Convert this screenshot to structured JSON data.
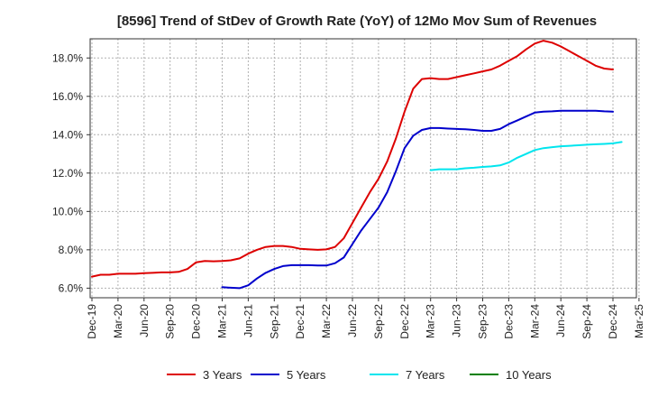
{
  "chart_data": {
    "type": "line",
    "title": "[8596]  Trend of StDev of Growth Rate (YoY) of 12Mo Mov Sum of Revenues",
    "xlabel": "",
    "ylabel": "",
    "ylim": [
      5.5,
      19.0
    ],
    "yticks": [
      6.0,
      8.0,
      10.0,
      12.0,
      14.0,
      16.0,
      18.0
    ],
    "ytick_labels": [
      "6.0%",
      "8.0%",
      "10.0%",
      "12.0%",
      "14.0%",
      "16.0%",
      "18.0%"
    ],
    "xtick_labels": [
      "Dec-19",
      "Mar-20",
      "Jun-20",
      "Sep-20",
      "Dec-20",
      "Mar-21",
      "Jun-21",
      "Sep-21",
      "Dec-21",
      "Mar-22",
      "Jun-22",
      "Sep-22",
      "Dec-22",
      "Mar-23",
      "Jun-23",
      "Sep-23",
      "Dec-23",
      "Mar-24",
      "Jun-24",
      "Sep-24",
      "Dec-24",
      "Mar-25"
    ],
    "x_start": "Dec-19",
    "num_months": 63,
    "grid": true,
    "legend_position": "bottom",
    "series": [
      {
        "name": "3 Years",
        "color": "#dd0000",
        "start_index": 0,
        "values": [
          6.6,
          6.7,
          6.7,
          6.75,
          6.75,
          6.75,
          6.78,
          6.8,
          6.82,
          6.82,
          6.85,
          7.0,
          7.35,
          7.42,
          7.4,
          7.42,
          7.45,
          7.55,
          7.8,
          8.0,
          8.15,
          8.2,
          8.2,
          8.15,
          8.05,
          8.02,
          8.0,
          8.02,
          8.15,
          8.6,
          9.4,
          10.2,
          11.0,
          11.7,
          12.6,
          13.8,
          15.2,
          16.4,
          16.9,
          16.95,
          16.9,
          16.9,
          17.0,
          17.1,
          17.2,
          17.3,
          17.4,
          17.6,
          17.85,
          18.1,
          18.45,
          18.75,
          18.9,
          18.8,
          18.6,
          18.35,
          18.1,
          17.85,
          17.6,
          17.45,
          17.4
        ]
      },
      {
        "name": "5 Years",
        "color": "#0000cc",
        "start_index": 15,
        "values": [
          6.05,
          6.02,
          6.0,
          6.15,
          6.5,
          6.8,
          7.0,
          7.15,
          7.2,
          7.2,
          7.2,
          7.18,
          7.18,
          7.3,
          7.6,
          8.3,
          9.0,
          9.6,
          10.2,
          11.0,
          12.1,
          13.3,
          13.95,
          14.25,
          14.35,
          14.35,
          14.32,
          14.3,
          14.28,
          14.25,
          14.2,
          14.2,
          14.3,
          14.55,
          14.75,
          14.95,
          15.15,
          15.2,
          15.22,
          15.25,
          15.25,
          15.25,
          15.25,
          15.25,
          15.22,
          15.2
        ]
      },
      {
        "name": "7 Years",
        "color": "#00e5ee",
        "start_index": 39,
        "values": [
          12.15,
          12.2,
          12.2,
          12.2,
          12.25,
          12.28,
          12.32,
          12.35,
          12.4,
          12.55,
          12.8,
          13.0,
          13.2,
          13.3,
          13.35,
          13.4,
          13.42,
          13.45,
          13.48,
          13.5,
          13.52,
          13.55,
          13.62
        ]
      },
      {
        "name": "10 Years",
        "color": "#008000",
        "start_index": 0,
        "values": []
      }
    ]
  }
}
